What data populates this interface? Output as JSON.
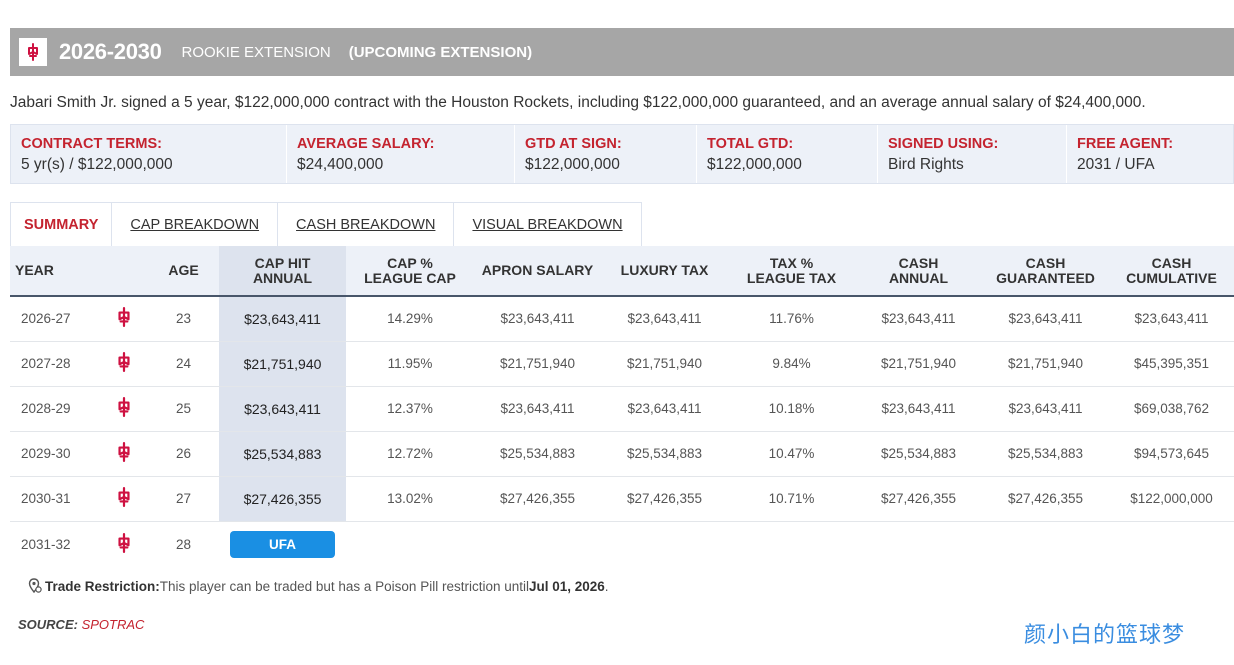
{
  "header": {
    "years": "2026-2030",
    "type": "ROOKIE EXTENSION",
    "note": "(UPCOMING EXTENSION)",
    "logo_icon": "rockets-logo-icon",
    "team_color": "#ce1141"
  },
  "summary": "Jabari Smith Jr. signed a 5 year, $122,000,000 contract with the Houston Rockets, including $122,000,000 guaranteed, and an average annual salary of $24,400,000.",
  "terms": [
    {
      "label": "CONTRACT TERMS:",
      "value": "5 yr(s) / $122,000,000"
    },
    {
      "label": "AVERAGE SALARY:",
      "value": "$24,400,000"
    },
    {
      "label": "GTD AT SIGN:",
      "value": "$122,000,000"
    },
    {
      "label": "TOTAL GTD:",
      "value": "$122,000,000"
    },
    {
      "label": "SIGNED USING:",
      "value": "Bird Rights"
    },
    {
      "label": "FREE AGENT:",
      "value": "2031 / UFA"
    }
  ],
  "tabs": [
    "SUMMARY",
    "CAP BREAKDOWN",
    "CASH BREAKDOWN",
    "VISUAL BREAKDOWN"
  ],
  "columns": {
    "year": "YEAR",
    "age": "AGE",
    "cap_hit": [
      "CAP HIT",
      "ANNUAL"
    ],
    "cap_pct": [
      "CAP %",
      "LEAGUE CAP"
    ],
    "apron": "APRON SALARY",
    "lux": "LUXURY TAX",
    "tax_pct": [
      "TAX %",
      "LEAGUE TAX"
    ],
    "cash_annual": [
      "CASH",
      "ANNUAL"
    ],
    "cash_gtd": [
      "CASH",
      "GUARANTEED"
    ],
    "cash_cum": [
      "CASH",
      "CUMULATIVE"
    ]
  },
  "rows": [
    {
      "year": "2026-27",
      "age": "23",
      "cap_hit": "$23,643,411",
      "cap_pct": "14.29%",
      "apron": "$23,643,411",
      "lux": "$23,643,411",
      "tax_pct": "11.76%",
      "cash_annual": "$23,643,411",
      "cash_gtd": "$23,643,411",
      "cash_cum": "$23,643,411"
    },
    {
      "year": "2027-28",
      "age": "24",
      "cap_hit": "$21,751,940",
      "cap_pct": "11.95%",
      "apron": "$21,751,940",
      "lux": "$21,751,940",
      "tax_pct": "9.84%",
      "cash_annual": "$21,751,940",
      "cash_gtd": "$21,751,940",
      "cash_cum": "$45,395,351"
    },
    {
      "year": "2028-29",
      "age": "25",
      "cap_hit": "$23,643,411",
      "cap_pct": "12.37%",
      "apron": "$23,643,411",
      "lux": "$23,643,411",
      "tax_pct": "10.18%",
      "cash_annual": "$23,643,411",
      "cash_gtd": "$23,643,411",
      "cash_cum": "$69,038,762"
    },
    {
      "year": "2029-30",
      "age": "26",
      "cap_hit": "$25,534,883",
      "cap_pct": "12.72%",
      "apron": "$25,534,883",
      "lux": "$25,534,883",
      "tax_pct": "10.47%",
      "cash_annual": "$25,534,883",
      "cash_gtd": "$25,534,883",
      "cash_cum": "$94,573,645"
    },
    {
      "year": "2030-31",
      "age": "27",
      "cap_hit": "$27,426,355",
      "cap_pct": "13.02%",
      "apron": "$27,426,355",
      "lux": "$27,426,355",
      "tax_pct": "10.71%",
      "cash_annual": "$27,426,355",
      "cash_gtd": "$27,426,355",
      "cash_cum": "$122,000,000"
    }
  ],
  "fa_row": {
    "year": "2031-32",
    "age": "28",
    "badge": "UFA",
    "badge_color": "#1a8fe3"
  },
  "trade": {
    "label": "Trade Restriction:",
    "text": " This player can be traded but has a Poison Pill restriction until ",
    "date": "Jul 01, 2026",
    "end": "."
  },
  "source": {
    "label": "SOURCE:",
    "name": "SPOTRAC"
  },
  "watermark": "颜小白的篮球梦"
}
